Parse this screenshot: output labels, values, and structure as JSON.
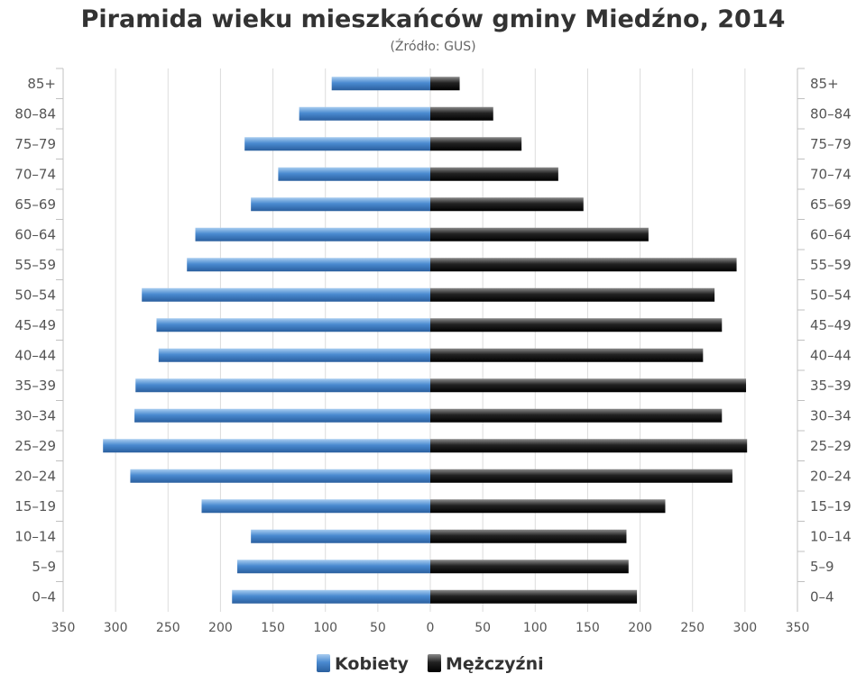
{
  "chart_data": {
    "type": "bar",
    "orientation": "horizontal",
    "title": "Piramida wieku mieszkańców gminy Miedźno, 2014",
    "subtitle": "(Źródło: GUS)",
    "categories": [
      "85+",
      "80–84",
      "75–79",
      "70–74",
      "65–69",
      "60–64",
      "55–59",
      "50–54",
      "45–49",
      "40–44",
      "35–39",
      "30–34",
      "25–29",
      "20–24",
      "15–19",
      "10–14",
      "5–9",
      "0–4"
    ],
    "x_ticks": [
      "350",
      "300",
      "250",
      "200",
      "150",
      "100",
      "50",
      "0",
      "50",
      "100",
      "150",
      "200",
      "250",
      "300",
      "350"
    ],
    "xlim": [
      -350,
      350
    ],
    "grid": true,
    "legend_position": "bottom",
    "series": [
      {
        "name": "Kobiety",
        "color": "#3f7fc4",
        "values": [
          94,
          125,
          177,
          145,
          171,
          224,
          232,
          275,
          261,
          259,
          281,
          282,
          312,
          286,
          218,
          171,
          184,
          189
        ]
      },
      {
        "name": "Mężczyźni",
        "color": "#1a1a1a",
        "values": [
          28,
          60,
          87,
          122,
          146,
          208,
          292,
          271,
          278,
          260,
          301,
          278,
          302,
          288,
          224,
          187,
          189,
          197
        ]
      }
    ]
  }
}
